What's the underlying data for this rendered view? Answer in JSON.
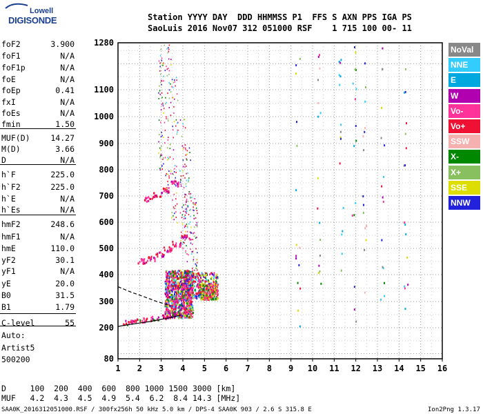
{
  "logo": {
    "line1": "Lowell",
    "line2": "DIGISONDE"
  },
  "header": {
    "labels": "Station YYYY DAY  DDD HHMMSS P1  FFS S AXN PPS IGA PS",
    "values": "SaoLuis 2016 Nov07 312 051000 RSF    1 715 100 00- 11"
  },
  "params": [
    {
      "k": "foF2",
      "v": "3.900"
    },
    {
      "k": "foF1",
      "v": "N/A"
    },
    {
      "k": "foF1p",
      "v": "N/A"
    },
    {
      "k": "foE",
      "v": "N/A"
    },
    {
      "k": "foEp",
      "v": "0.41"
    },
    {
      "k": "fxI",
      "v": "N/A"
    },
    {
      "k": "foEs",
      "v": "N/A"
    },
    {
      "k": "fmin",
      "v": "1.50"
    },
    {
      "k": "MUF(D)",
      "v": "14.27"
    },
    {
      "k": "M(D)",
      "v": "3.66"
    },
    {
      "k": "D",
      "v": "N/A"
    },
    {
      "k": "h`F",
      "v": "225.0"
    },
    {
      "k": "h`F2",
      "v": "225.0"
    },
    {
      "k": "h`E",
      "v": "N/A"
    },
    {
      "k": "h`Es",
      "v": "N/A"
    },
    {
      "k": "hmF2",
      "v": "248.6"
    },
    {
      "k": "hmF1",
      "v": "N/A"
    },
    {
      "k": "hmE",
      "v": "110.0"
    },
    {
      "k": "yF2",
      "v": "30.1"
    },
    {
      "k": "yF1",
      "v": "N/A"
    },
    {
      "k": "yE",
      "v": "20.0"
    },
    {
      "k": "B0",
      "v": "31.5"
    },
    {
      "k": "B1",
      "v": "1.79"
    },
    {
      "k": "C-level",
      "v": "55"
    }
  ],
  "autoscale": {
    "line1": "Auto:",
    "line2": "Artist5",
    "line3": "500200"
  },
  "legend": [
    {
      "label": "NoVal",
      "color": "#888888"
    },
    {
      "label": "NNE",
      "color": "#33ccff"
    },
    {
      "label": "E",
      "color": "#00a8e0"
    },
    {
      "label": "W",
      "color": "#b000b0"
    },
    {
      "label": "Vo-",
      "color": "#ff3399"
    },
    {
      "label": "Vo+",
      "color": "#ee1133"
    },
    {
      "label": "SSW",
      "color": "#f5b0b0"
    },
    {
      "label": "X-",
      "color": "#008800"
    },
    {
      "label": "X+",
      "color": "#88c060"
    },
    {
      "label": "SSE",
      "color": "#dddd00"
    },
    {
      "label": "NNW",
      "color": "#2222dd"
    }
  ],
  "muf_table": {
    "d_row": "D     100  200  400  600  800 1000 1500 3000 [km]",
    "muf_row": "MUF   4.2  4.3  4.5  4.9  5.4  6.2  8.4 14.3 [MHz]"
  },
  "footer": {
    "left": "SAA0K_2016312051000.RSF / 300fx256h 50 kHz 5.0 km / DPS-4 SAA0K 903 / 2.6 S 315.8 E",
    "right": "Ion2Png 1.3.17"
  },
  "chart_data": {
    "type": "scatter",
    "x_ticks": [
      1,
      2,
      3,
      4,
      5,
      6,
      7,
      8,
      9,
      10,
      11,
      12,
      13,
      14,
      15,
      16
    ],
    "y_ticks": [
      80,
      200,
      300,
      400,
      500,
      600,
      700,
      800,
      900,
      1000,
      1100,
      1280
    ],
    "xlim": [
      1,
      16
    ],
    "ylim": [
      80,
      1280
    ],
    "x_unit": "MHz",
    "y_unit": "km",
    "grid": true,
    "y_scale": "nonlinear",
    "echo_traces": [
      {
        "name": "F2 trace",
        "points": [
          [
            1.2,
            222
          ],
          [
            1.6,
            228
          ],
          [
            2.0,
            232
          ],
          [
            2.5,
            238
          ],
          [
            3.0,
            245
          ],
          [
            3.5,
            255
          ],
          [
            3.9,
            270
          ]
        ]
      },
      {
        "name": "2nd hop",
        "points": [
          [
            1.9,
            455
          ],
          [
            2.3,
            465
          ],
          [
            2.7,
            480
          ],
          [
            3.1,
            500
          ],
          [
            3.5,
            520
          ],
          [
            3.9,
            545
          ]
        ]
      },
      {
        "name": "3rd hop",
        "points": [
          [
            2.2,
            690
          ],
          [
            2.6,
            705
          ],
          [
            3.0,
            725
          ],
          [
            3.4,
            750
          ]
        ]
      }
    ],
    "model_profile": [
      [
        1.0,
        205
      ],
      [
        1.5,
        212
      ],
      [
        2.0,
        218
      ],
      [
        2.5,
        224
      ],
      [
        3.0,
        232
      ],
      [
        3.5,
        240
      ],
      [
        3.9,
        248.6
      ]
    ],
    "model_topside": [
      [
        1.0,
        355
      ],
      [
        1.6,
        335
      ],
      [
        2.2,
        318
      ],
      [
        2.8,
        300
      ],
      [
        3.4,
        285
      ]
    ]
  }
}
